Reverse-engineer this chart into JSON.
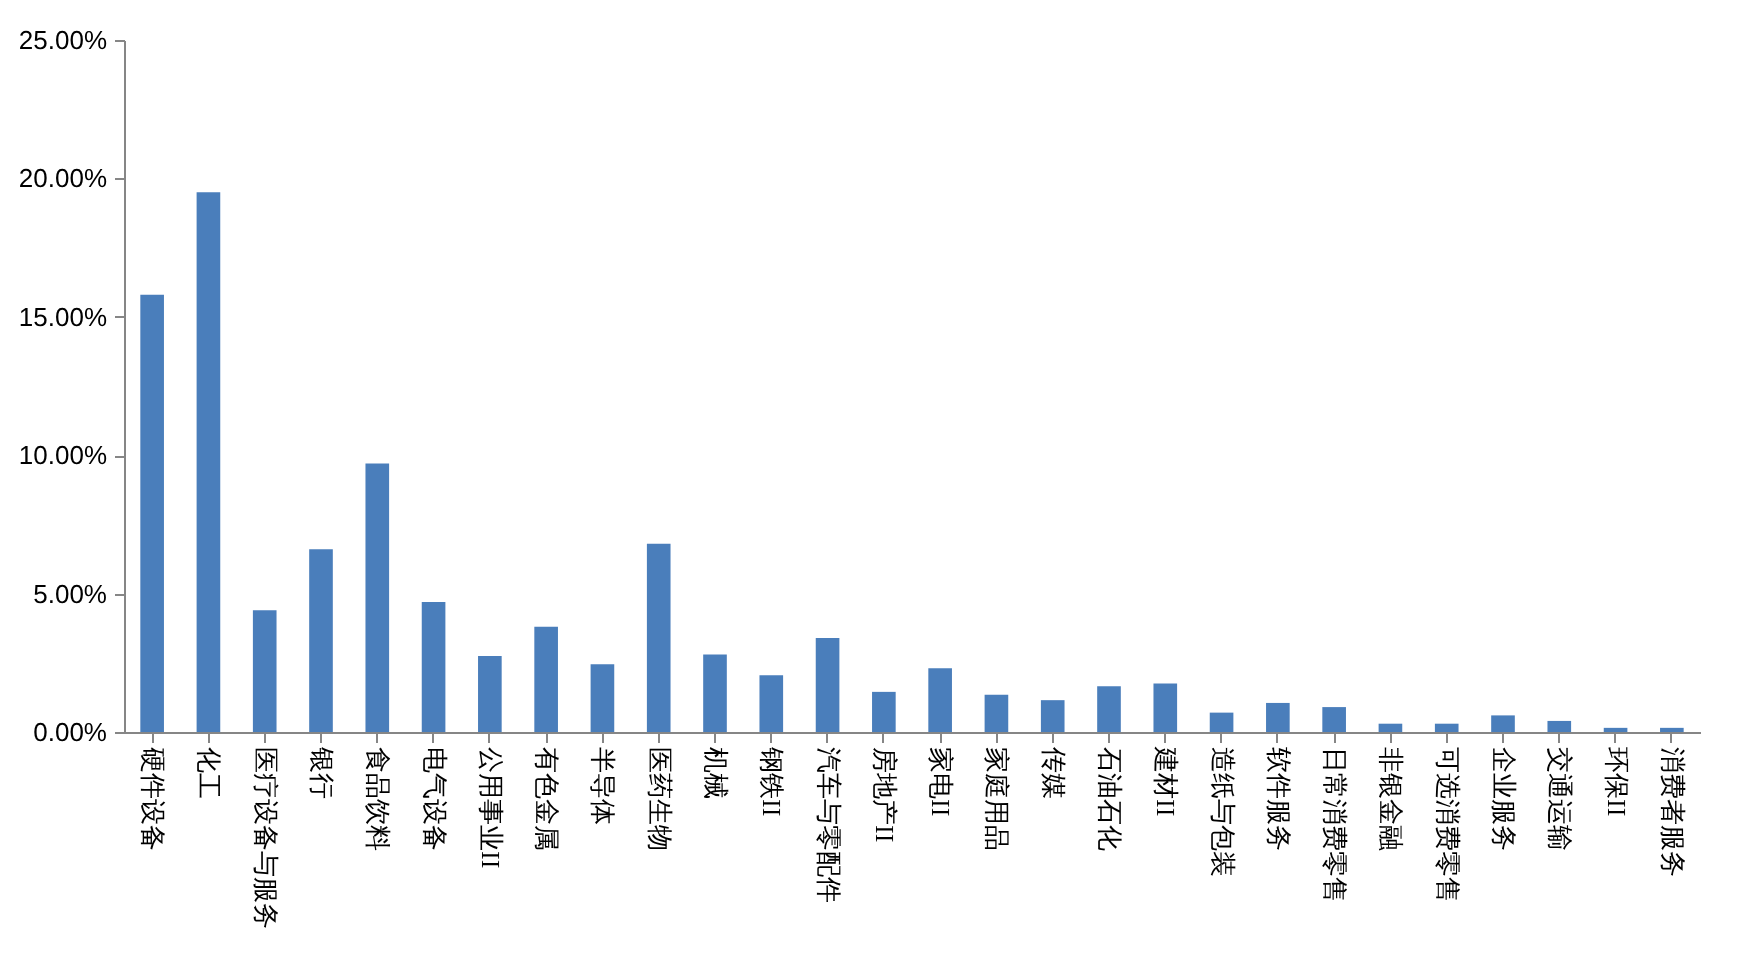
{
  "chart_data": {
    "type": "bar",
    "categories": [
      "硬件设备",
      "化工",
      "医疗设备与服务",
      "银行",
      "食品饮料",
      "电气设备",
      "公用事业II",
      "有色金属",
      "半导体",
      "医药生物",
      "机械",
      "钢铁II",
      "汽车与零配件",
      "房地产II",
      "家电II",
      "家庭用品",
      "传媒",
      "石油石化",
      "建材II",
      "造纸与包装",
      "软件服务",
      "日常消费零售",
      "非银金融",
      "可选消费零售",
      "企业服务",
      "交通运输",
      "环保II",
      "消费者服务"
    ],
    "values": [
      15.8,
      19.5,
      4.4,
      6.6,
      9.7,
      4.7,
      2.75,
      3.8,
      2.45,
      6.8,
      2.8,
      2.05,
      3.4,
      1.45,
      2.3,
      1.35,
      1.15,
      1.65,
      1.75,
      0.7,
      1.05,
      0.9,
      0.3,
      0.3,
      0.6,
      0.4,
      0.15,
      0.15
    ],
    "color": "#4a7ebb",
    "ylim": [
      0,
      25
    ],
    "yticks": [
      {
        "value": 0,
        "label": "0.00%"
      },
      {
        "value": 5,
        "label": "5.00%"
      },
      {
        "value": 10,
        "label": "10.00%"
      },
      {
        "value": 15,
        "label": "15.00%"
      },
      {
        "value": 20,
        "label": "20.00%"
      },
      {
        "value": 25,
        "label": "25.00%"
      }
    ],
    "grid": false
  }
}
